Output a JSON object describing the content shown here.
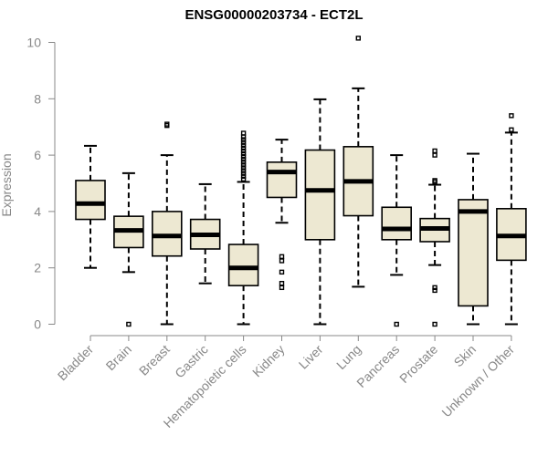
{
  "chart_data": {
    "type": "box",
    "title": "ENSG00000203734 - ECT2L",
    "ylabel": "Expression",
    "xlabel": "",
    "ylim": [
      0,
      10
    ],
    "yticks": [
      0,
      2,
      4,
      6,
      8,
      10
    ],
    "grid": false,
    "colors": {
      "box_fill": "#ede8d2",
      "box_stroke": "#000000",
      "median": "#000000",
      "axis": "#888888"
    },
    "categories": [
      "Bladder",
      "Brain",
      "Breast",
      "Gastric",
      "Hematopoietic cells",
      "Kidney",
      "Liver",
      "Lung",
      "Pancreas",
      "Prostate",
      "Skin",
      "Unknown / Other"
    ],
    "boxes": [
      {
        "name": "Bladder",
        "q1": 3.72,
        "median": 4.28,
        "q3": 5.1,
        "whisker_low": 2.0,
        "whisker_high": 6.33,
        "outliers": []
      },
      {
        "name": "Brain",
        "q1": 2.72,
        "median": 3.33,
        "q3": 3.83,
        "whisker_low": 1.85,
        "whisker_high": 5.36,
        "outliers": [
          0.0
        ]
      },
      {
        "name": "Breast",
        "q1": 2.42,
        "median": 3.13,
        "q3": 4.0,
        "whisker_low": 0.0,
        "whisker_high": 6.0,
        "outliers": [
          7.1,
          7.05
        ]
      },
      {
        "name": "Gastric",
        "q1": 2.67,
        "median": 3.17,
        "q3": 3.72,
        "whisker_low": 1.45,
        "whisker_high": 4.97,
        "outliers": []
      },
      {
        "name": "Hematopoietic cells",
        "q1": 1.37,
        "median": 2.0,
        "q3": 2.83,
        "whisker_low": 0.0,
        "whisker_high": 5.05,
        "outliers": [
          5.15,
          5.25,
          5.35,
          5.45,
          5.55,
          5.65,
          5.75,
          5.85,
          5.95,
          6.05,
          6.15,
          6.25,
          6.35,
          6.45,
          6.55,
          6.65,
          6.78
        ]
      },
      {
        "name": "Kidney",
        "q1": 4.5,
        "median": 5.4,
        "q3": 5.75,
        "whisker_low": 3.6,
        "whisker_high": 6.55,
        "outliers": [
          2.4,
          2.25,
          1.85,
          1.45,
          1.3
        ]
      },
      {
        "name": "Liver",
        "q1": 3.0,
        "median": 4.75,
        "q3": 6.18,
        "whisker_low": 0.0,
        "whisker_high": 7.98,
        "outliers": []
      },
      {
        "name": "Lung",
        "q1": 3.85,
        "median": 5.07,
        "q3": 6.3,
        "whisker_low": 1.33,
        "whisker_high": 8.37,
        "outliers": [
          10.15
        ]
      },
      {
        "name": "Pancreas",
        "q1": 3.0,
        "median": 3.38,
        "q3": 4.15,
        "whisker_low": 1.75,
        "whisker_high": 6.0,
        "outliers": [
          0.0
        ]
      },
      {
        "name": "Prostate",
        "q1": 2.93,
        "median": 3.4,
        "q3": 3.75,
        "whisker_low": 2.1,
        "whisker_high": 4.95,
        "outliers": [
          6.15,
          6.0,
          5.1,
          5.05,
          1.3,
          1.2,
          0.0
        ]
      },
      {
        "name": "Skin",
        "q1": 0.65,
        "median": 4.0,
        "q3": 4.42,
        "whisker_low": 0.0,
        "whisker_high": 6.05,
        "outliers": []
      },
      {
        "name": "Unknown / Other",
        "q1": 2.27,
        "median": 3.13,
        "q3": 4.1,
        "whisker_low": 0.0,
        "whisker_high": 6.8,
        "outliers": [
          7.4,
          6.9
        ]
      }
    ]
  }
}
